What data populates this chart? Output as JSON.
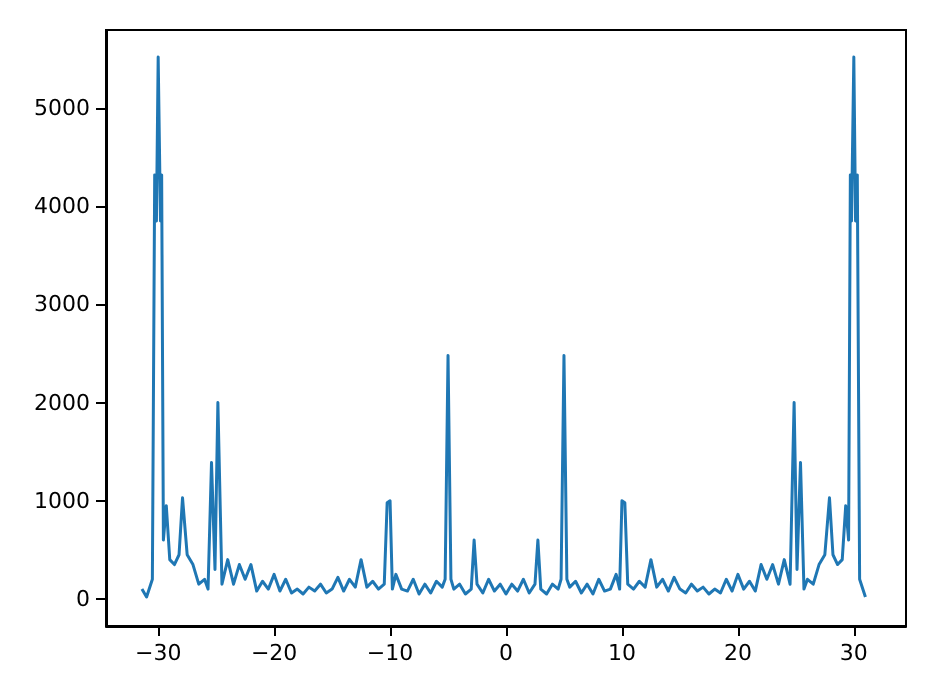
{
  "chart_data": {
    "type": "line",
    "xlim": [
      -34.5,
      34.5
    ],
    "xticks": [
      -30,
      -20,
      -10,
      0,
      10,
      20,
      30
    ],
    "ylim": [
      -276,
      5796
    ],
    "yticks": [
      0,
      1000,
      2000,
      3000,
      4000,
      5000
    ],
    "series": [
      {
        "color": "#1f77b4",
        "x": [
          -31.4,
          -31,
          -30.5,
          -30.3,
          -30.15,
          -30,
          -29.8,
          -29.7,
          -29.55,
          -29.3,
          -29,
          -28.6,
          -28.2,
          -27.9,
          -27.5,
          -27,
          -26.5,
          -26,
          -25.7,
          -25.4,
          -25.1,
          -24.85,
          -24.5,
          -24,
          -23.5,
          -23,
          -22.5,
          -22,
          -21.5,
          -21,
          -20.5,
          -20,
          -19.5,
          -19,
          -18.5,
          -18,
          -17.5,
          -17,
          -16.5,
          -16,
          -15.5,
          -15,
          -14.5,
          -14,
          -13.5,
          -13,
          -12.5,
          -12,
          -11.5,
          -11,
          -10.5,
          -10.25,
          -10,
          -9.8,
          -9.5,
          -9,
          -8.5,
          -8,
          -7.5,
          -7,
          -6.5,
          -6,
          -5.5,
          -5.25,
          -5,
          -4.75,
          -4.5,
          -4,
          -3.5,
          -3,
          -2.75,
          -2.5,
          -2,
          -1.5,
          -1,
          -0.5,
          0,
          0.5,
          1,
          1.5,
          2,
          2.5,
          2.75,
          3,
          3.5,
          4,
          4.5,
          4.75,
          5,
          5.25,
          5.5,
          6,
          6.5,
          7,
          7.5,
          8,
          8.5,
          9,
          9.5,
          9.8,
          10,
          10.25,
          10.5,
          11,
          11.5,
          12,
          12.5,
          13,
          13.5,
          14,
          14.5,
          15,
          15.5,
          16,
          16.5,
          17,
          17.5,
          18,
          18.5,
          19,
          19.5,
          20,
          20.5,
          21,
          21.5,
          22,
          22.5,
          23,
          23.5,
          24,
          24.5,
          24.85,
          25.1,
          25.4,
          25.7,
          26,
          26.5,
          27,
          27.5,
          27.9,
          28.2,
          28.6,
          29,
          29.3,
          29.55,
          29.7,
          29.8,
          30,
          30.15,
          30.3,
          30.5,
          31
        ],
        "values": [
          100,
          20,
          200,
          4320,
          3850,
          5520,
          3850,
          4320,
          600,
          950,
          400,
          350,
          450,
          1030,
          450,
          350,
          150,
          200,
          100,
          1390,
          300,
          2000,
          150,
          400,
          150,
          350,
          200,
          350,
          80,
          180,
          100,
          250,
          80,
          200,
          60,
          100,
          50,
          120,
          80,
          150,
          60,
          100,
          220,
          80,
          200,
          120,
          400,
          120,
          180,
          100,
          150,
          980,
          1000,
          100,
          250,
          100,
          80,
          200,
          50,
          150,
          60,
          180,
          120,
          200,
          2480,
          200,
          100,
          150,
          50,
          100,
          600,
          150,
          60,
          200,
          80,
          150,
          50,
          150,
          80,
          200,
          60,
          150,
          600,
          100,
          50,
          150,
          100,
          200,
          2480,
          200,
          120,
          180,
          60,
          150,
          50,
          200,
          80,
          100,
          250,
          100,
          1000,
          980,
          150,
          100,
          180,
          120,
          400,
          120,
          200,
          80,
          220,
          100,
          60,
          150,
          80,
          120,
          50,
          100,
          60,
          200,
          80,
          250,
          100,
          180,
          80,
          350,
          200,
          350,
          150,
          400,
          150,
          2000,
          300,
          1390,
          100,
          200,
          150,
          350,
          450,
          1030,
          450,
          350,
          400,
          950,
          600,
          4320,
          3850,
          5520,
          3850,
          4320,
          200,
          20
        ]
      }
    ]
  }
}
